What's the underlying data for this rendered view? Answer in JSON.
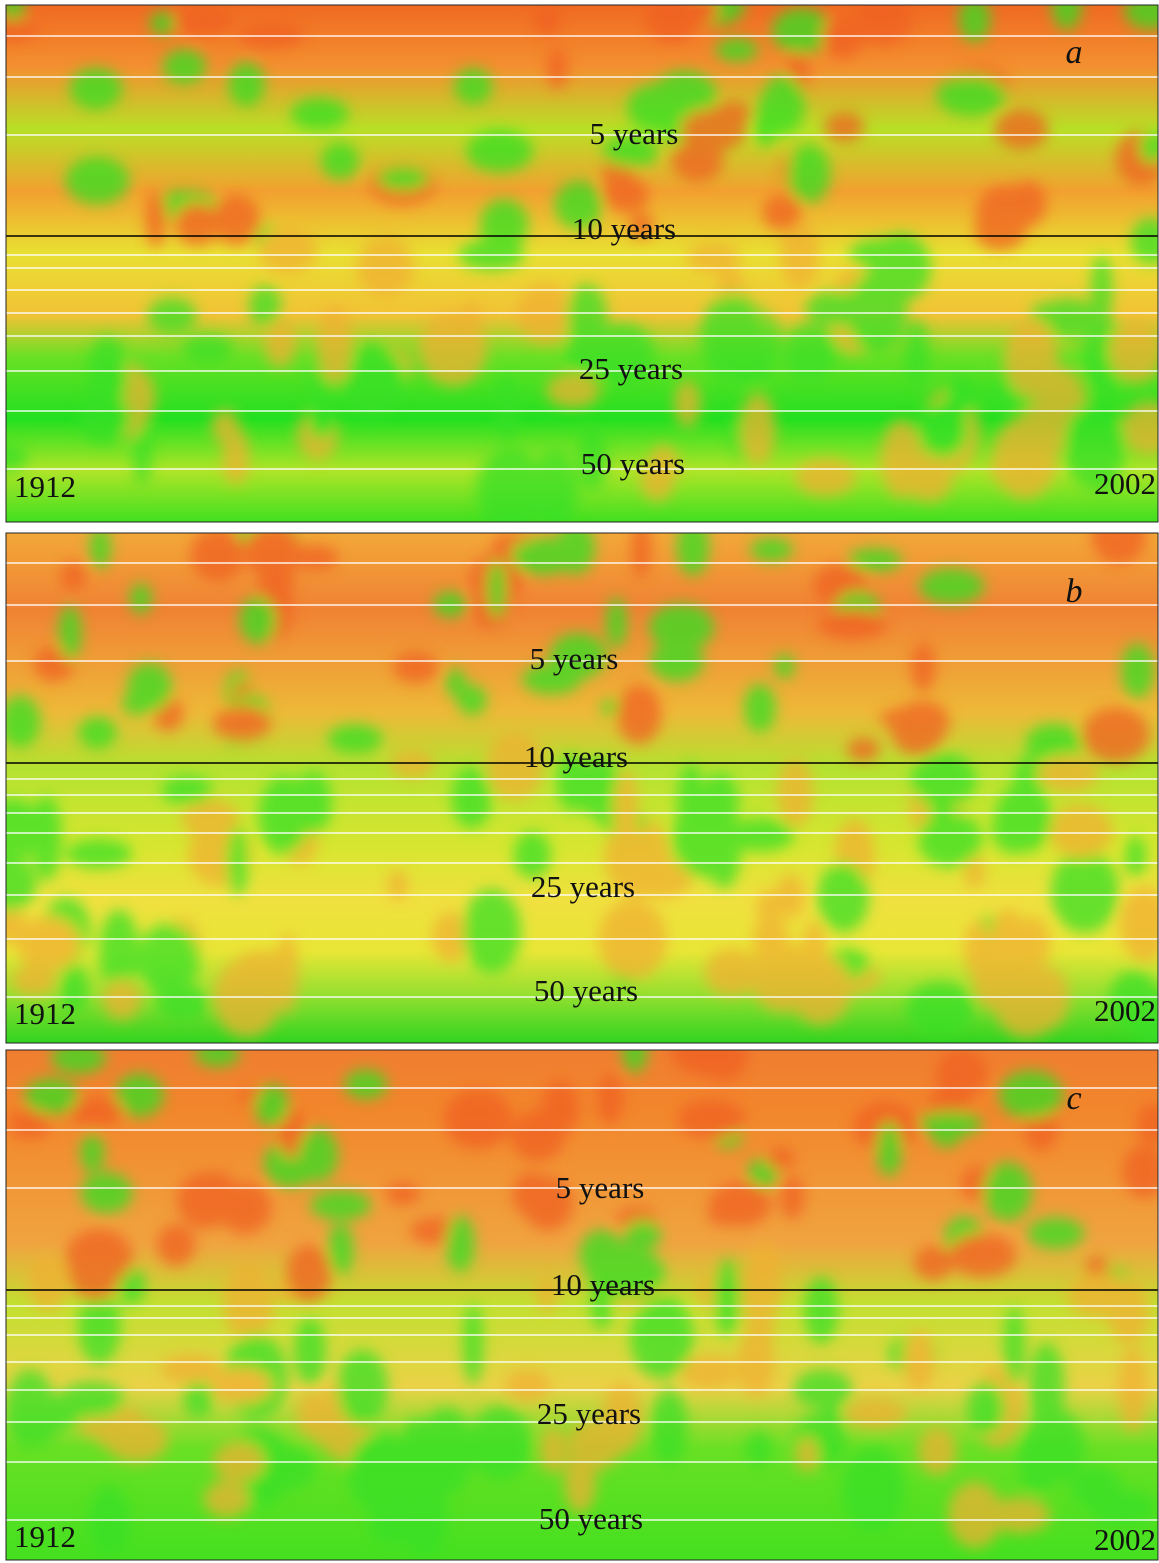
{
  "panels": [
    {
      "letter": "a",
      "start": "1912",
      "end": "2002",
      "scale_labels": [
        "5 years",
        "10 years",
        "25 years",
        "50 years"
      ]
    },
    {
      "letter": "b",
      "start": "1912",
      "end": "2002",
      "scale_labels": [
        "5 years",
        "10 years",
        "25 years",
        "50 years"
      ]
    },
    {
      "letter": "c",
      "start": "1912",
      "end": "2002",
      "scale_labels": [
        "5 years",
        "10 years",
        "25 years",
        "50 years"
      ]
    }
  ]
}
